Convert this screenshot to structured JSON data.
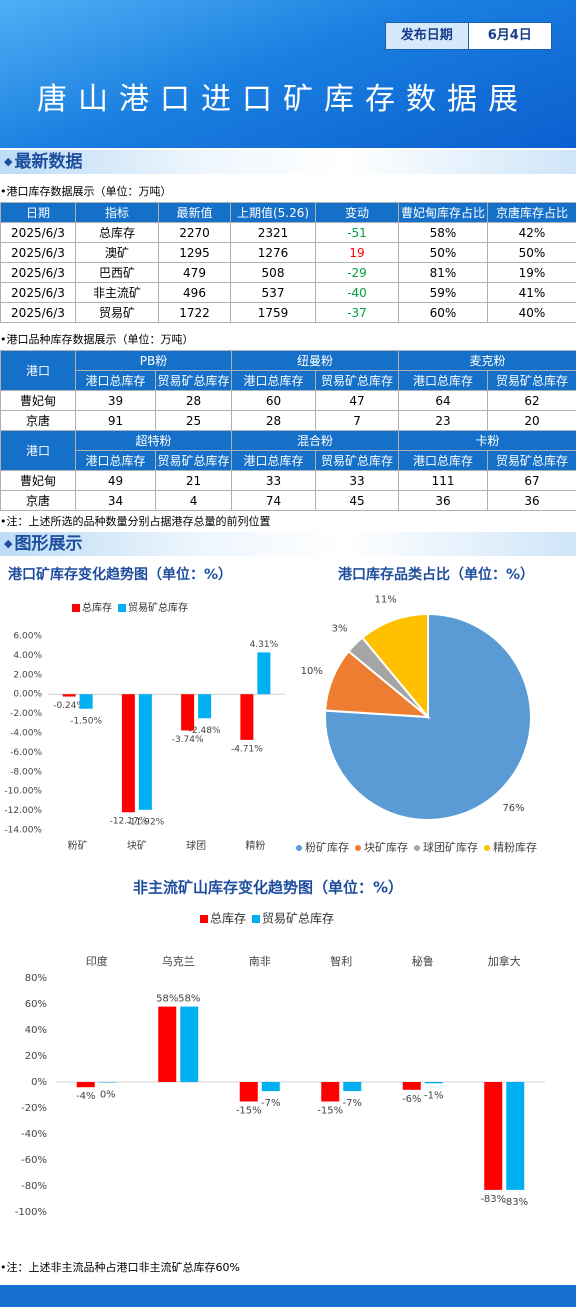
{
  "header": {
    "title": "唐山港口进口矿库存数据展",
    "date_label": "发布日期",
    "date": "6月4日"
  },
  "sections": [
    "最新数据",
    "图形展示"
  ],
  "table1": {
    "caption": "港口库存数据展示（单位：万吨）",
    "columns": [
      "日期",
      "指标",
      "最新值",
      "上期值(5.26)",
      "变动",
      "曹妃甸库存占比",
      "京唐库存占比"
    ],
    "rows": [
      [
        "2025/6/3",
        "总库存",
        "2270",
        "2321",
        "-51",
        "58%",
        "42%"
      ],
      [
        "2025/6/3",
        "澳矿",
        "1295",
        "1276",
        "19",
        "50%",
        "50%"
      ],
      [
        "2025/6/3",
        "巴西矿",
        "479",
        "508",
        "-29",
        "81%",
        "19%"
      ],
      [
        "2025/6/3",
        "非主流矿",
        "496",
        "537",
        "-40",
        "59%",
        "41%"
      ],
      [
        "2025/6/3",
        "贸易矿",
        "1722",
        "1759",
        "-37",
        "60%",
        "40%"
      ]
    ]
  },
  "table2": {
    "caption": "港口品种库存数据展示（单位：万吨）",
    "blocks": [
      {
        "port_header": "港口",
        "groups": [
          "PB粉",
          "纽曼粉",
          "麦克粉"
        ],
        "sub_headers": [
          "港口总库存",
          "贸易矿总库存",
          "港口总库存",
          "贸易矿总库存",
          "港口总库存",
          "贸易矿总库存"
        ],
        "rows": [
          [
            "曹妃甸",
            "39",
            "28",
            "60",
            "47",
            "64",
            "62"
          ],
          [
            "京唐",
            "91",
            "25",
            "28",
            "7",
            "23",
            "20"
          ]
        ]
      },
      {
        "port_header": "港口",
        "groups": [
          "超特粉",
          "混合粉",
          "卡粉"
        ],
        "sub_headers": [
          "港口总库存",
          "贸易矿总库存",
          "港口总库存",
          "贸易矿总库存",
          "港口总库存",
          "贸易矿总库存"
        ],
        "rows": [
          [
            "曹妃甸",
            "49",
            "21",
            "33",
            "33",
            "111",
            "67"
          ],
          [
            "京唐",
            "34",
            "4",
            "74",
            "45",
            "36",
            "36"
          ]
        ]
      }
    ]
  },
  "notes": [
    "注：上述所选的品种数量分别占据港存总量的前列位置",
    "注：上述非主流品种占港口非主流矿总库存60%"
  ],
  "chart_data": [
    {
      "type": "bar",
      "title": "港口矿库存变化趋势图（单位：%）",
      "categories": [
        "粉矿",
        "块矿",
        "球团",
        "精粉"
      ],
      "series": [
        {
          "name": "总库存",
          "color": "#ff0000",
          "values": [
            -0.24,
            -12.17,
            -3.74,
            -4.71
          ],
          "value_labels": [
            "-0.24%",
            "-12.17%",
            "-3.74%",
            "-4.71%"
          ]
        },
        {
          "name": "贸易矿总库存",
          "color": "#00b0f0",
          "values": [
            -1.5,
            -11.92,
            -2.48,
            4.31
          ],
          "value_labels": [
            "-1.50%",
            "-11.92%",
            "-2.48%",
            "4.31%"
          ]
        }
      ],
      "ylim": [
        -14,
        6
      ],
      "yticks": [
        {
          "value": 6,
          "label": "6.00%"
        },
        {
          "value": 4,
          "label": "4.00%"
        },
        {
          "value": 2,
          "label": "2.00%"
        },
        {
          "value": 0,
          "label": "0.00%"
        },
        {
          "value": -2,
          "label": "-2.00%"
        },
        {
          "value": -4,
          "label": "-4.00%"
        },
        {
          "value": -6,
          "label": "-6.00%"
        },
        {
          "value": -8,
          "label": "-8.00%"
        },
        {
          "value": -10,
          "label": "-10.00%"
        },
        {
          "value": -12,
          "label": "-12.00%"
        },
        {
          "value": -14,
          "label": "-14.00%"
        }
      ]
    },
    {
      "type": "pie",
      "title": "港口库存品类占比（单位：%）",
      "categories": [
        "粉矿库存",
        "块矿库存",
        "球团矿库存",
        "精粉库存"
      ],
      "values": [
        76,
        10,
        3,
        11
      ],
      "value_labels": [
        "76%",
        "10%",
        "3%",
        "11%"
      ],
      "colors": [
        "#5b9bd5",
        "#ed7d31",
        "#a5a5a5",
        "#ffc000"
      ]
    },
    {
      "type": "bar",
      "title": "非主流矿山库存变化趋势图（单位：%）",
      "categories": [
        "印度",
        "乌克兰",
        "南非",
        "智利",
        "秘鲁",
        "加拿大"
      ],
      "series": [
        {
          "name": "总库存",
          "color": "#ff0000",
          "values": [
            -4,
            58,
            -15,
            -15,
            -6,
            -83
          ],
          "value_labels": [
            "-4%",
            "58%",
            "-15%",
            "-15%",
            "-6%",
            "-83%"
          ]
        },
        {
          "name": "贸易矿总库存",
          "color": "#00b0f0",
          "values": [
            -0.4,
            58,
            -7,
            -7,
            -1,
            -83
          ],
          "value_labels": [
            "0%",
            "58%",
            "-7%",
            "-7%",
            "-1%",
            "-83%"
          ]
        }
      ],
      "ylim": [
        -100,
        80
      ],
      "yticks": [
        {
          "value": 80,
          "label": "80%"
        },
        {
          "value": 60,
          "label": "60%"
        },
        {
          "value": 40,
          "label": "40%"
        },
        {
          "value": 20,
          "label": "20%"
        },
        {
          "value": 0,
          "label": "0%"
        },
        {
          "value": -20,
          "label": "-20%"
        },
        {
          "value": -40,
          "label": "-40%"
        },
        {
          "value": -60,
          "label": "-60%"
        },
        {
          "value": -80,
          "label": "-80%"
        },
        {
          "value": -100,
          "label": "-100%"
        }
      ]
    }
  ]
}
